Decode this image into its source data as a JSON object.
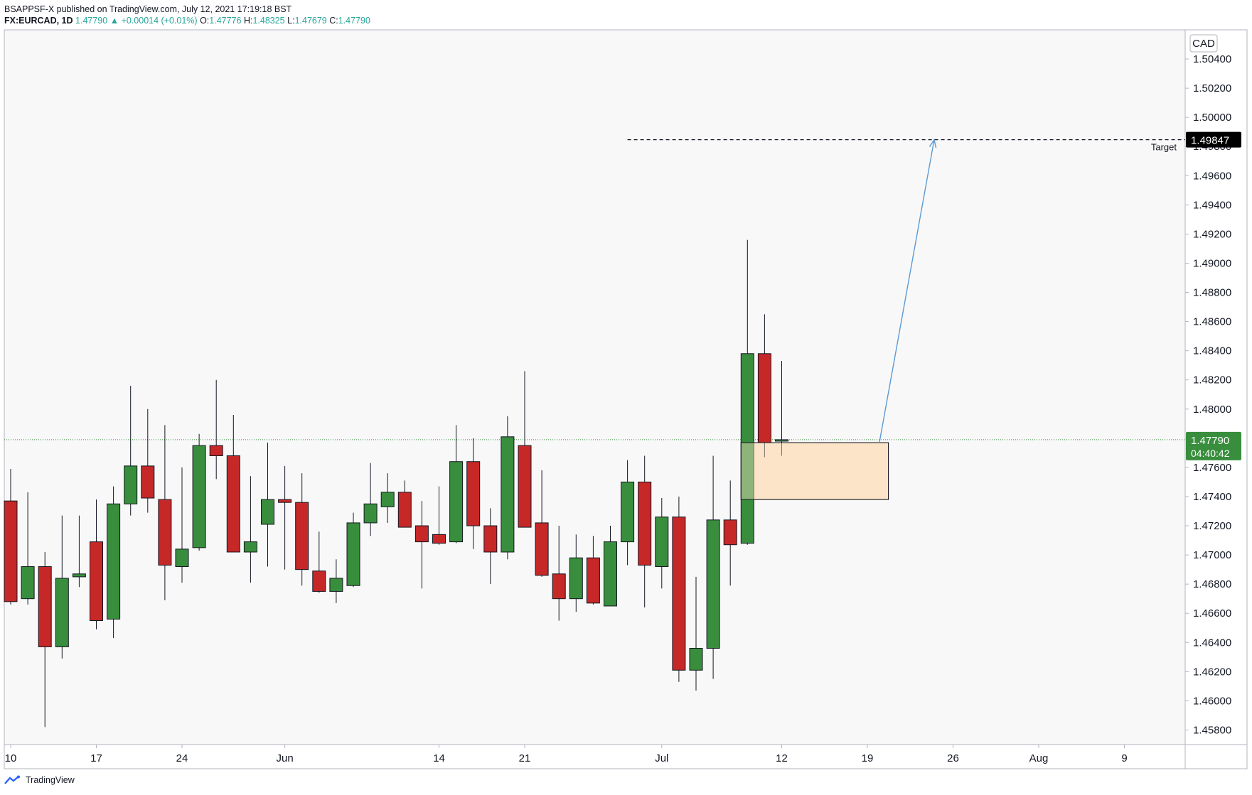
{
  "header": {
    "publisher_line": "BSAPPSF-X published on TradingView.com, July 12, 2021 17:19:18 BST",
    "symbol": "FX:EURCAD, 1D",
    "last": "1.47790",
    "change_arrow": "▲",
    "change": "+0.00014 (+0.01%)",
    "o_label": "O:",
    "o": "1.47776",
    "h_label": "H:",
    "h": "1.48325",
    "l_label": "L:",
    "l": "1.47679",
    "c_label": "C:",
    "c": "1.47790"
  },
  "footer": {
    "brand": "TradingView",
    "logo_icon": "tradingview-logo-icon"
  },
  "colors": {
    "up": "#388e3c",
    "down": "#c62828",
    "wick": "#131722",
    "background": "#f8f8f8",
    "grid_border": "#b2b5be",
    "zone_fill": "#fbe3c4",
    "zone_border": "#131722",
    "arrow": "#5b9bd5",
    "price_tag": "#388e3c",
    "target_tag": "#000000"
  },
  "chart_data": {
    "type": "candlestick",
    "symbol": "FX:EURCAD",
    "interval": "1D",
    "currency_label": "CAD",
    "ylim": [
      1.457,
      1.506
    ],
    "y_ticks": [
      "1.45800",
      "1.46000",
      "1.46200",
      "1.46400",
      "1.46600",
      "1.46800",
      "1.47000",
      "1.47200",
      "1.47400",
      "1.47600",
      "1.47800",
      "1.48000",
      "1.48200",
      "1.48400",
      "1.48600",
      "1.48800",
      "1.49000",
      "1.49200",
      "1.49400",
      "1.49600",
      "1.49800",
      "1.50000",
      "1.50200",
      "1.50400"
    ],
    "x_ticks": [
      {
        "label": "10",
        "index": 0
      },
      {
        "label": "17",
        "index": 5
      },
      {
        "label": "24",
        "index": 10
      },
      {
        "label": "Jun",
        "index": 16
      },
      {
        "label": "14",
        "index": 25
      },
      {
        "label": "21",
        "index": 30
      },
      {
        "label": "Jul",
        "index": 38
      },
      {
        "label": "12",
        "index": 45
      },
      {
        "label": "19",
        "index": 50
      },
      {
        "label": "26",
        "index": 55
      },
      {
        "label": "Aug",
        "index": 60
      },
      {
        "label": "9",
        "index": 65
      }
    ],
    "candles": [
      {
        "o": 1.4737,
        "h": 1.4759,
        "l": 1.4666,
        "c": 1.4668
      },
      {
        "o": 1.467,
        "h": 1.4743,
        "l": 1.4666,
        "c": 1.4692
      },
      {
        "o": 1.4692,
        "h": 1.4702,
        "l": 1.4582,
        "c": 1.4637
      },
      {
        "o": 1.4637,
        "h": 1.4727,
        "l": 1.4629,
        "c": 1.4684
      },
      {
        "o": 1.4685,
        "h": 1.4727,
        "l": 1.4678,
        "c": 1.4687
      },
      {
        "o": 1.4709,
        "h": 1.4738,
        "l": 1.4649,
        "c": 1.4655
      },
      {
        "o": 1.4656,
        "h": 1.4747,
        "l": 1.4643,
        "c": 1.4735
      },
      {
        "o": 1.4735,
        "h": 1.4816,
        "l": 1.4727,
        "c": 1.4761
      },
      {
        "o": 1.4761,
        "h": 1.48,
        "l": 1.4729,
        "c": 1.4739
      },
      {
        "o": 1.4738,
        "h": 1.4789,
        "l": 1.4669,
        "c": 1.4693
      },
      {
        "o": 1.4692,
        "h": 1.476,
        "l": 1.4681,
        "c": 1.4704
      },
      {
        "o": 1.4705,
        "h": 1.4783,
        "l": 1.4703,
        "c": 1.4775
      },
      {
        "o": 1.4775,
        "h": 1.482,
        "l": 1.4752,
        "c": 1.4768
      },
      {
        "o": 1.4768,
        "h": 1.4796,
        "l": 1.4702,
        "c": 1.4702
      },
      {
        "o": 1.4702,
        "h": 1.4754,
        "l": 1.4681,
        "c": 1.4709
      },
      {
        "o": 1.4721,
        "h": 1.4777,
        "l": 1.4692,
        "c": 1.4738
      },
      {
        "o": 1.4738,
        "h": 1.4761,
        "l": 1.469,
        "c": 1.4736
      },
      {
        "o": 1.4736,
        "h": 1.4756,
        "l": 1.4679,
        "c": 1.469
      },
      {
        "o": 1.4689,
        "h": 1.4716,
        "l": 1.4674,
        "c": 1.4675
      },
      {
        "o": 1.4675,
        "h": 1.4697,
        "l": 1.4667,
        "c": 1.4684
      },
      {
        "o": 1.4679,
        "h": 1.4729,
        "l": 1.4678,
        "c": 1.4722
      },
      {
        "o": 1.4722,
        "h": 1.4763,
        "l": 1.4713,
        "c": 1.4735
      },
      {
        "o": 1.4733,
        "h": 1.4756,
        "l": 1.4722,
        "c": 1.4743
      },
      {
        "o": 1.4743,
        "h": 1.4751,
        "l": 1.4721,
        "c": 1.4719
      },
      {
        "o": 1.472,
        "h": 1.4737,
        "l": 1.4677,
        "c": 1.4709
      },
      {
        "o": 1.4714,
        "h": 1.4747,
        "l": 1.4707,
        "c": 1.4708
      },
      {
        "o": 1.4709,
        "h": 1.4789,
        "l": 1.4708,
        "c": 1.4764
      },
      {
        "o": 1.4764,
        "h": 1.478,
        "l": 1.4704,
        "c": 1.472
      },
      {
        "o": 1.472,
        "h": 1.4732,
        "l": 1.468,
        "c": 1.4702
      },
      {
        "o": 1.4702,
        "h": 1.4795,
        "l": 1.4697,
        "c": 1.4781
      },
      {
        "o": 1.4775,
        "h": 1.4826,
        "l": 1.4719,
        "c": 1.4719
      },
      {
        "o": 1.4722,
        "h": 1.4758,
        "l": 1.4685,
        "c": 1.4686
      },
      {
        "o": 1.4687,
        "h": 1.472,
        "l": 1.4655,
        "c": 1.467
      },
      {
        "o": 1.467,
        "h": 1.4714,
        "l": 1.4661,
        "c": 1.4698
      },
      {
        "o": 1.4698,
        "h": 1.4713,
        "l": 1.4666,
        "c": 1.4667
      },
      {
        "o": 1.4665,
        "h": 1.472,
        "l": 1.4665,
        "c": 1.4709
      },
      {
        "o": 1.4709,
        "h": 1.4765,
        "l": 1.4693,
        "c": 1.475
      },
      {
        "o": 1.475,
        "h": 1.4768,
        "l": 1.4664,
        "c": 1.4693
      },
      {
        "o": 1.4692,
        "h": 1.4739,
        "l": 1.4677,
        "c": 1.4726
      },
      {
        "o": 1.4726,
        "h": 1.474,
        "l": 1.4613,
        "c": 1.4621
      },
      {
        "o": 1.4621,
        "h": 1.4685,
        "l": 1.4607,
        "c": 1.4636
      },
      {
        "o": 1.4636,
        "h": 1.4768,
        "l": 1.4615,
        "c": 1.4724
      },
      {
        "o": 1.4724,
        "h": 1.4751,
        "l": 1.4679,
        "c": 1.4707
      },
      {
        "o": 1.4708,
        "h": 1.4916,
        "l": 1.4707,
        "c": 1.4838
      },
      {
        "o": 1.4838,
        "h": 1.4865,
        "l": 1.4767,
        "c": 1.4777
      },
      {
        "o": 1.4778,
        "h": 1.4833,
        "l": 1.4768,
        "c": 1.4779
      }
    ],
    "target": {
      "label": "Target",
      "price": 1.49847,
      "price_label": "1.49847"
    },
    "current": {
      "price": 1.4779,
      "price_label": "1.47790",
      "countdown": "04:40:42"
    },
    "zone": {
      "top": 1.4777,
      "bottom": 1.4738,
      "start_index": 43,
      "end_index": 51.6
    },
    "arrow": {
      "from_index": 50.7,
      "from_price": 1.4777,
      "to_index": 53.9,
      "to_price": 1.49847
    }
  }
}
